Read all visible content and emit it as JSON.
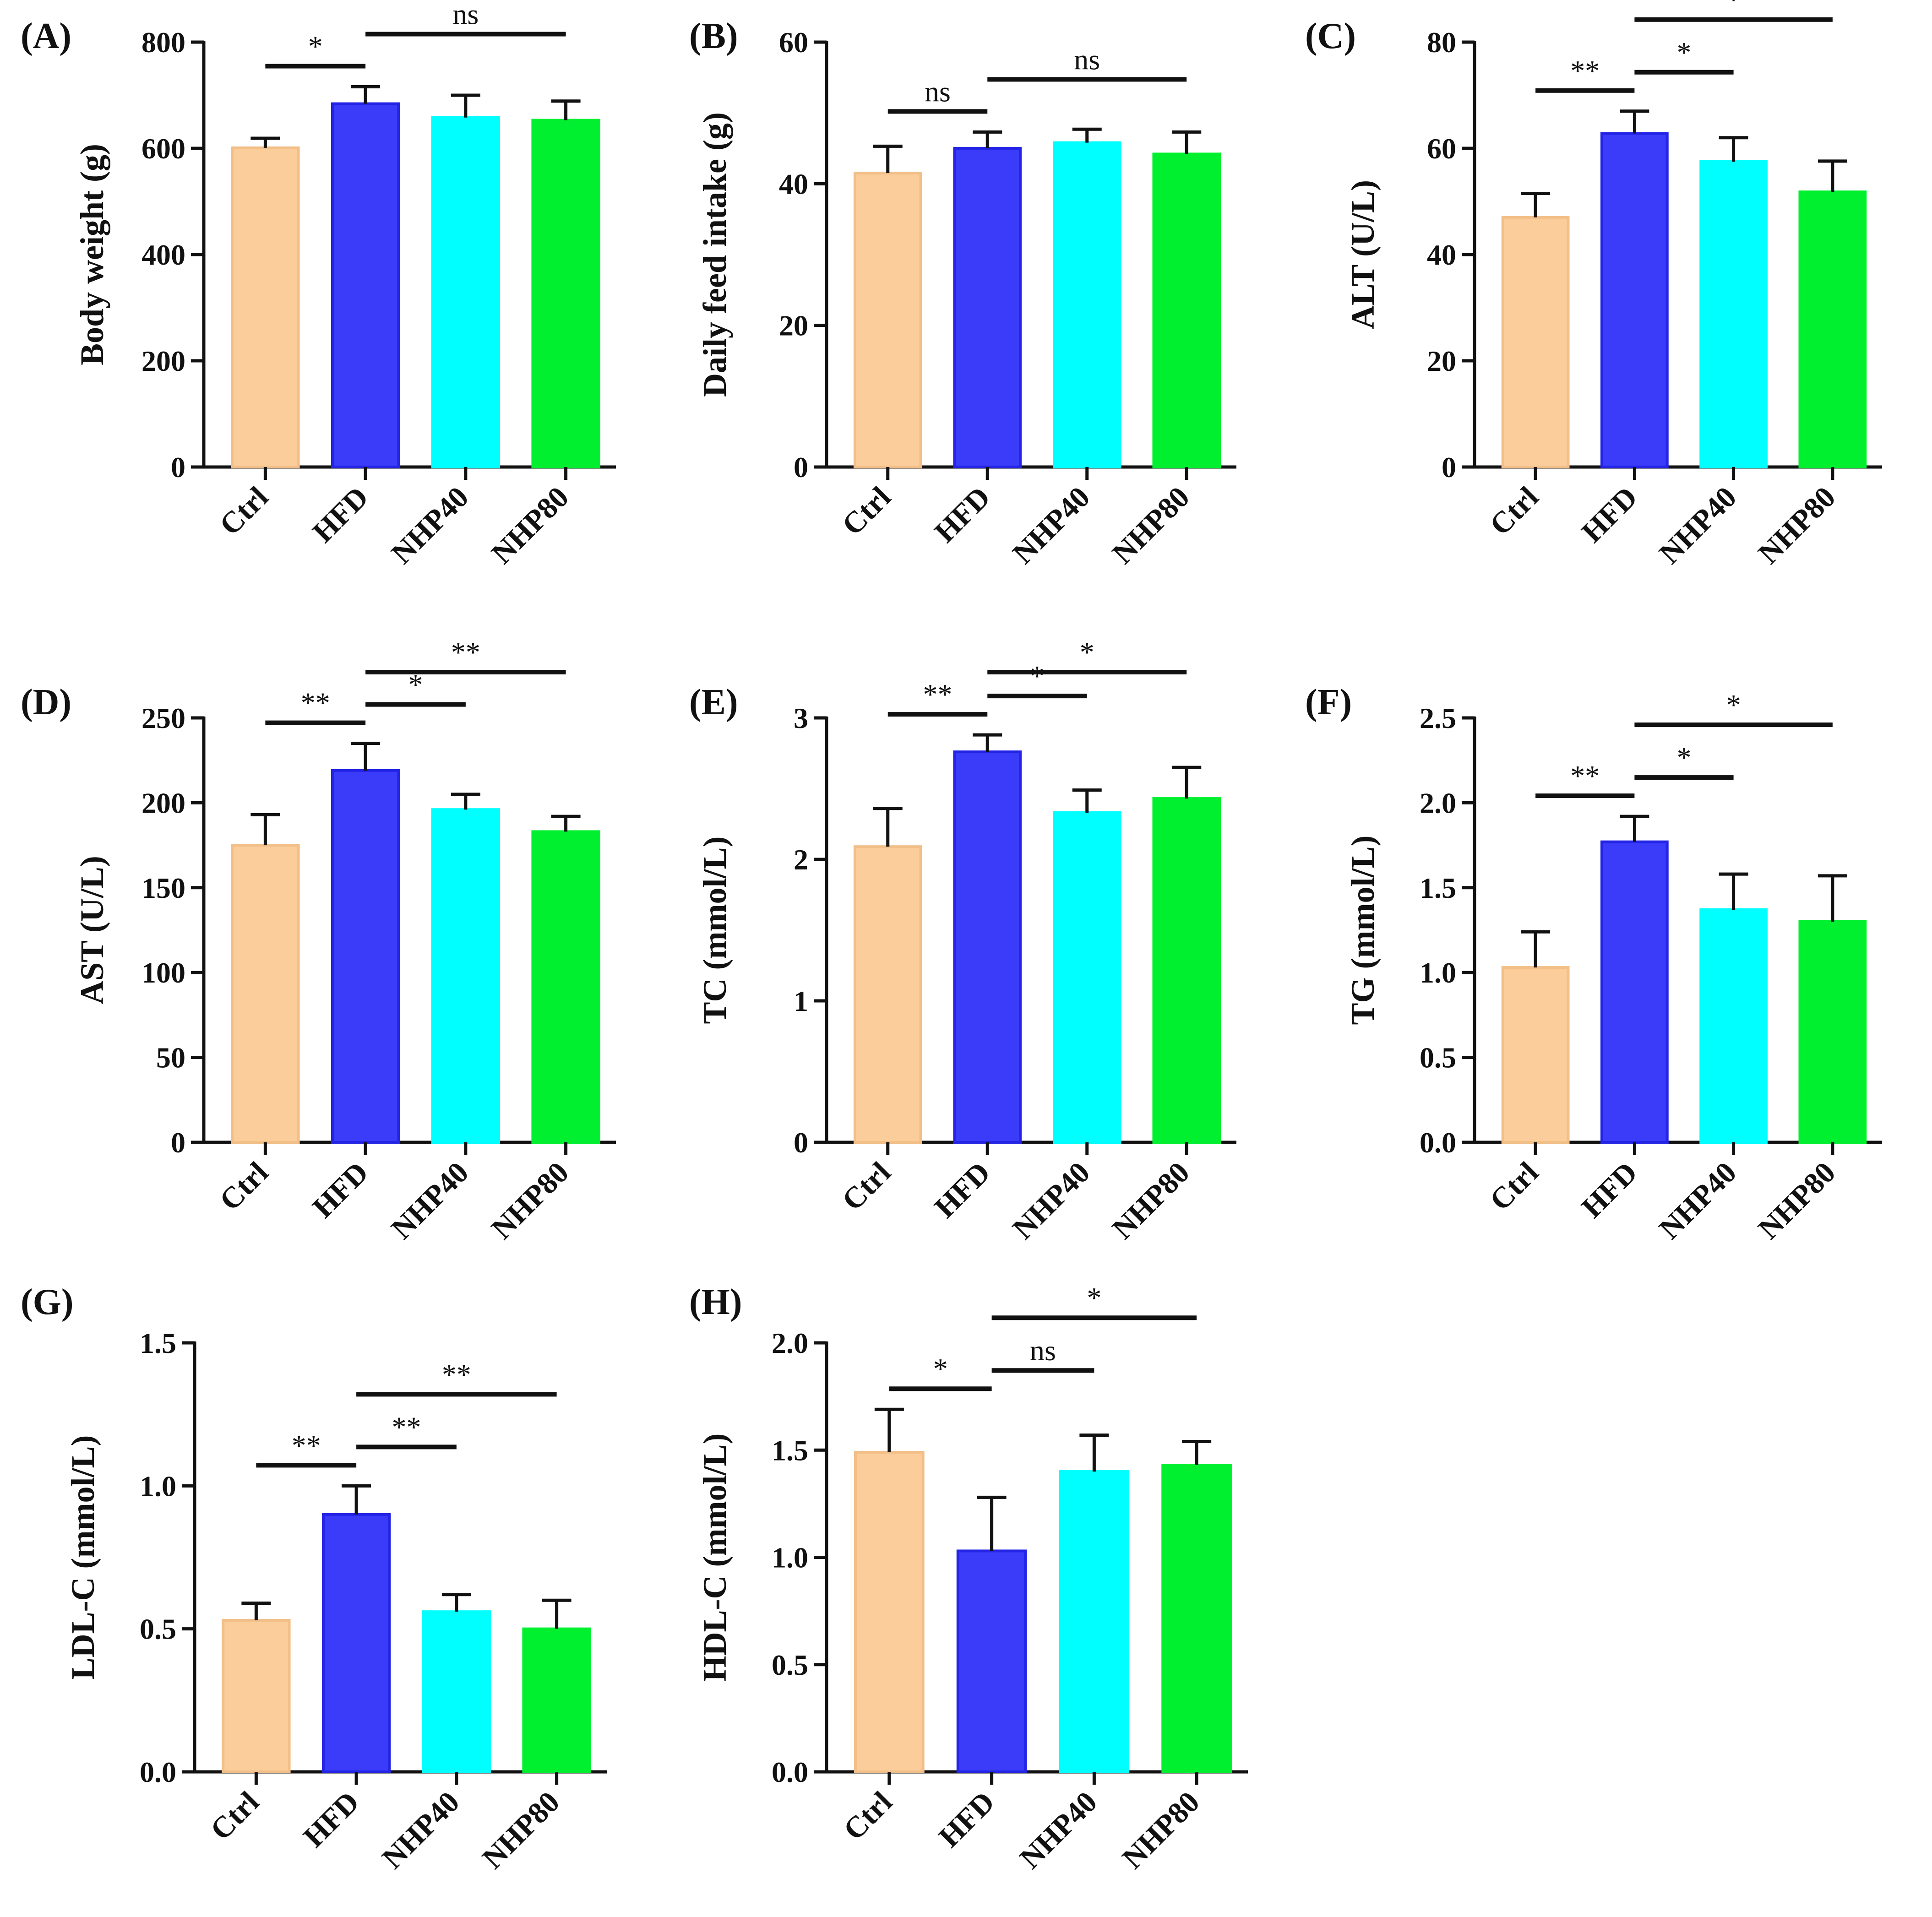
{
  "figure": {
    "colors": {
      "Ctrl": "#FBCD9A",
      "HFD": "#3B3BFA",
      "NHP40": "#00FFFF",
      "NHP80": "#00F02F",
      "axis": "#111111"
    }
  },
  "chart_data": [
    {
      "panel": "(A)",
      "type": "bar",
      "categories": [
        "Ctrl",
        "HFD",
        "NHP40",
        "NHP80"
      ],
      "values": [
        601,
        684,
        658,
        653
      ],
      "errors": [
        18,
        32,
        42,
        36
      ],
      "ylabel": "Body weight (g)",
      "ylim": [
        0,
        800
      ],
      "yticks": [
        "0",
        "200",
        "400",
        "600",
        "800"
      ],
      "significance": [
        {
          "from": "Ctrl",
          "to": "HFD",
          "label": "*"
        },
        {
          "from": "HFD",
          "to": "NHP80",
          "label": "ns"
        }
      ]
    },
    {
      "panel": "(B)",
      "type": "bar",
      "categories": [
        "Ctrl",
        "HFD",
        "NHP40",
        "NHP80"
      ],
      "values": [
        41.5,
        45.0,
        45.8,
        44.2
      ],
      "errors": [
        3.8,
        2.3,
        1.9,
        3.1
      ],
      "ylabel": "Daily feed intake (g)",
      "ylim": [
        0,
        60
      ],
      "yticks": [
        "0",
        "20",
        "40",
        "60"
      ],
      "significance": [
        {
          "from": "Ctrl",
          "to": "HFD",
          "label": "ns"
        },
        {
          "from": "HFD",
          "to": "NHP80",
          "label": "ns"
        }
      ]
    },
    {
      "panel": "(C)",
      "type": "bar",
      "categories": [
        "Ctrl",
        "HFD",
        "NHP40",
        "NHP80"
      ],
      "values": [
        47,
        62.8,
        57.5,
        51.8
      ],
      "errors": [
        4.5,
        4.2,
        4.5,
        5.8
      ],
      "ylabel": "ALT (U/L)",
      "ylim": [
        0,
        80
      ],
      "yticks": [
        "0",
        "20",
        "40",
        "60",
        "80"
      ],
      "significance": [
        {
          "from": "Ctrl",
          "to": "HFD",
          "label": "**"
        },
        {
          "from": "HFD",
          "to": "NHP40",
          "label": "*"
        },
        {
          "from": "HFD",
          "to": "NHP80",
          "label": "*"
        }
      ]
    },
    {
      "panel": "(D)",
      "type": "bar",
      "categories": [
        "Ctrl",
        "HFD",
        "NHP40",
        "NHP80"
      ],
      "values": [
        175,
        219,
        196,
        183
      ],
      "errors": [
        18,
        16,
        9,
        9
      ],
      "ylabel": "AST (U/L)",
      "ylim": [
        0,
        250
      ],
      "yticks": [
        "0",
        "50",
        "100",
        "150",
        "200",
        "250"
      ],
      "significance": [
        {
          "from": "Ctrl",
          "to": "HFD",
          "label": "**"
        },
        {
          "from": "HFD",
          "to": "NHP40",
          "label": "*"
        },
        {
          "from": "HFD",
          "to": "NHP80",
          "label": "**"
        }
      ]
    },
    {
      "panel": "(E)",
      "type": "bar",
      "categories": [
        "Ctrl",
        "HFD",
        "NHP40",
        "NHP80"
      ],
      "values": [
        2.09,
        2.76,
        2.33,
        2.43
      ],
      "errors": [
        0.27,
        0.12,
        0.16,
        0.22
      ],
      "ylabel": "TC (mmol/L)",
      "ylim": [
        0,
        3
      ],
      "yticks": [
        "0",
        "1",
        "2",
        "3"
      ],
      "significance": [
        {
          "from": "Ctrl",
          "to": "HFD",
          "label": "**"
        },
        {
          "from": "HFD",
          "to": "NHP40",
          "label": "*"
        },
        {
          "from": "HFD",
          "to": "NHP80",
          "label": "*"
        }
      ]
    },
    {
      "panel": "(F)",
      "type": "bar",
      "categories": [
        "Ctrl",
        "HFD",
        "NHP40",
        "NHP80"
      ],
      "values": [
        1.03,
        1.77,
        1.37,
        1.3
      ],
      "errors": [
        0.21,
        0.15,
        0.21,
        0.27
      ],
      "ylabel": "TG (mmol/L)",
      "ylim": [
        0,
        2.5
      ],
      "yticks": [
        "0.0",
        "0.5",
        "1.0",
        "1.5",
        "2.0",
        "2.5"
      ],
      "significance": [
        {
          "from": "Ctrl",
          "to": "HFD",
          "label": "**"
        },
        {
          "from": "HFD",
          "to": "NHP40",
          "label": "*"
        },
        {
          "from": "HFD",
          "to": "NHP80",
          "label": "*"
        }
      ]
    },
    {
      "panel": "(G)",
      "type": "bar",
      "categories": [
        "Ctrl",
        "HFD",
        "NHP40",
        "NHP80"
      ],
      "values": [
        0.53,
        0.9,
        0.56,
        0.5
      ],
      "errors": [
        0.06,
        0.1,
        0.06,
        0.1
      ],
      "ylabel": "LDL-C (mmol/L)",
      "ylim": [
        0,
        1.5
      ],
      "yticks": [
        "0.0",
        "0.5",
        "1.0",
        "1.5"
      ],
      "significance": [
        {
          "from": "Ctrl",
          "to": "HFD",
          "label": "**"
        },
        {
          "from": "HFD",
          "to": "NHP40",
          "label": "**"
        },
        {
          "from": "HFD",
          "to": "NHP80",
          "label": "**"
        }
      ]
    },
    {
      "panel": "(H)",
      "type": "bar",
      "categories": [
        "Ctrl",
        "HFD",
        "NHP40",
        "NHP80"
      ],
      "values": [
        1.49,
        1.03,
        1.4,
        1.43
      ],
      "errors": [
        0.2,
        0.25,
        0.17,
        0.11
      ],
      "ylabel": "HDL-C (mmol/L)",
      "ylim": [
        0,
        2.0
      ],
      "yticks": [
        "0.0",
        "0.5",
        "1.0",
        "1.5",
        "2.0"
      ],
      "significance": [
        {
          "from": "Ctrl",
          "to": "HFD",
          "label": "*"
        },
        {
          "from": "HFD",
          "to": "NHP40",
          "label": "ns"
        },
        {
          "from": "HFD",
          "to": "NHP80",
          "label": "*"
        }
      ]
    }
  ]
}
